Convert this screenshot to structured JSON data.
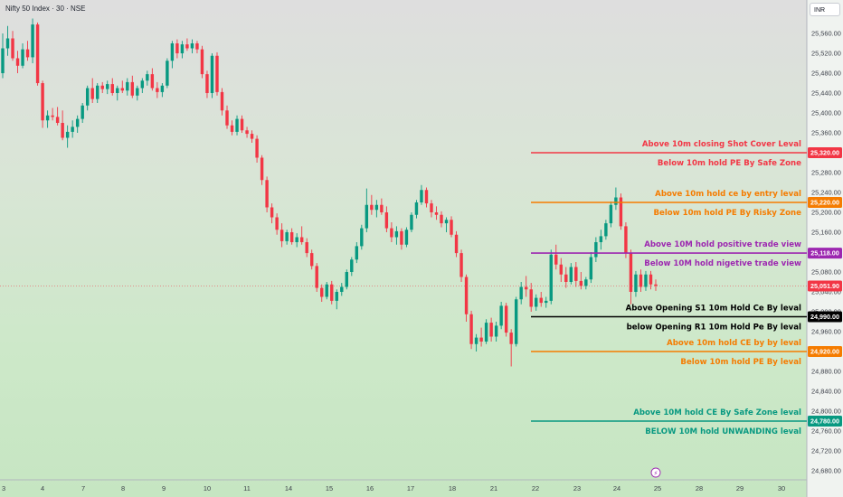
{
  "header": {
    "symbol_title": "Nifty 50 Index · 30 · NSE",
    "currency": "INR"
  },
  "chart_data": {
    "type": "candlestick",
    "y_axis": {
      "range": [
        24650,
        25600
      ],
      "ticks": [
        25560,
        25520,
        25480,
        25440,
        25400,
        25360,
        25320,
        25280,
        25240,
        25200,
        25160,
        25120,
        25080,
        25040,
        25000,
        24960,
        24920,
        24880,
        24840,
        24800,
        24760,
        24720,
        24680
      ],
      "tick_labels": [
        "25,560.00",
        "25,520.00",
        "25,480.00",
        "25,440.00",
        "25,400.00",
        "25,360.00",
        "25,320.00",
        "25,280.00",
        "25,240.00",
        "25,200.00",
        "25,160.00",
        "25,120.00",
        "25,080.00",
        "25,040.00",
        "25,000.00",
        "24,960.00",
        "24,920.00",
        "24,880.00",
        "24,840.00",
        "24,800.00",
        "24,760.00",
        "24,720.00",
        "24,680.00"
      ]
    },
    "x_axis": {
      "labels": [
        "3",
        "4",
        "7",
        "8",
        "9",
        "10",
        "11",
        "14",
        "15",
        "16",
        "17",
        "18",
        "21",
        "22",
        "23",
        "24",
        "25",
        "28",
        "29",
        "30"
      ],
      "event_marker": "⚡"
    },
    "current_price": {
      "value": 25051.9,
      "label": "25,051.90"
    },
    "colors": {
      "up": "#089981",
      "down": "#f23645",
      "current": "#f23645"
    },
    "levels": [
      {
        "value": 25320,
        "price_label": "25,320.00",
        "color": "#f23645",
        "texts": [
          "Above 10m closing Shot Cover Leval",
          "Below 10m hold PE By Safe Zone"
        ]
      },
      {
        "value": 25220,
        "price_label": "25,220.00",
        "color": "#f57c00",
        "texts": [
          "Above 10m hold ce by entry leval",
          "Below 10m hold PE By Risky Zone"
        ]
      },
      {
        "value": 25118,
        "price_label": "25,118.00",
        "color": "#9c27b0",
        "texts": [
          "Above 10M hold positive trade view",
          "Below 10M hold nigetive trade view"
        ]
      },
      {
        "value": 24990,
        "price_label": "24,990.00",
        "color": "#000000",
        "texts": [
          "Above Opening S1 10m Hold Ce By leval",
          "below Opening R1 10m Hold Pe By leval"
        ]
      },
      {
        "value": 24920,
        "price_label": "24,920.00",
        "color": "#f57c00",
        "texts": [
          "Above 10m hold CE by by leval",
          "Below 10m hold PE By leval"
        ]
      },
      {
        "value": 24780,
        "price_label": "24,780.00",
        "color": "#089981",
        "texts": [
          "Above 10M hold CE By Safe Zone leval",
          "BELOW 10M hold UNWANDING leval"
        ]
      }
    ],
    "candles": [
      [
        25480,
        25560,
        25470,
        25530
      ],
      [
        25530,
        25575,
        25515,
        25550
      ],
      [
        25550,
        25565,
        25505,
        25510
      ],
      [
        25510,
        25525,
        25480,
        25495
      ],
      [
        25495,
        25540,
        25490,
        25528
      ],
      [
        25528,
        25545,
        25505,
        25512
      ],
      [
        25512,
        25590,
        25500,
        25578
      ],
      [
        25578,
        25582,
        25455,
        25460
      ],
      [
        25460,
        25465,
        25370,
        25385
      ],
      [
        25385,
        25405,
        25370,
        25395
      ],
      [
        25395,
        25410,
        25385,
        25392
      ],
      [
        25392,
        25412,
        25375,
        25380
      ],
      [
        25380,
        25405,
        25345,
        25350
      ],
      [
        25350,
        25375,
        25330,
        25362
      ],
      [
        25362,
        25385,
        25350,
        25372
      ],
      [
        25372,
        25395,
        25360,
        25388
      ],
      [
        25388,
        25420,
        25380,
        25415
      ],
      [
        25415,
        25455,
        25405,
        25450
      ],
      [
        25450,
        25470,
        25420,
        25428
      ],
      [
        25428,
        25460,
        25420,
        25455
      ],
      [
        25455,
        25462,
        25440,
        25448
      ],
      [
        25448,
        25465,
        25438,
        25458
      ],
      [
        25458,
        25470,
        25435,
        25440
      ],
      [
        25440,
        25455,
        25425,
        25450
      ],
      [
        25450,
        25465,
        25440,
        25445
      ],
      [
        25445,
        25470,
        25435,
        25462
      ],
      [
        25462,
        25475,
        25430,
        25435
      ],
      [
        25435,
        25455,
        25425,
        25450
      ],
      [
        25450,
        25470,
        25440,
        25465
      ],
      [
        25465,
        25485,
        25455,
        25478
      ],
      [
        25478,
        25490,
        25445,
        25450
      ],
      [
        25450,
        25462,
        25430,
        25442
      ],
      [
        25442,
        25460,
        25432,
        25455
      ],
      [
        25455,
        25510,
        25450,
        25505
      ],
      [
        25505,
        25545,
        25490,
        25540
      ],
      [
        25540,
        25548,
        25510,
        25520
      ],
      [
        25520,
        25545,
        25510,
        25538
      ],
      [
        25538,
        25550,
        25525,
        25530
      ],
      [
        25530,
        25548,
        25520,
        25540
      ],
      [
        25540,
        25545,
        25520,
        25528
      ],
      [
        25528,
        25535,
        25470,
        25478
      ],
      [
        25478,
        25485,
        25430,
        25440
      ],
      [
        25440,
        25520,
        25430,
        25515
      ],
      [
        25515,
        25522,
        25435,
        25442
      ],
      [
        25442,
        25450,
        25395,
        25405
      ],
      [
        25405,
        25415,
        25368,
        25375
      ],
      [
        25375,
        25385,
        25355,
        25362
      ],
      [
        25362,
        25395,
        25355,
        25388
      ],
      [
        25388,
        25395,
        25360,
        25365
      ],
      [
        25365,
        25372,
        25350,
        25358
      ],
      [
        25358,
        25365,
        25340,
        25348
      ],
      [
        25348,
        25355,
        25300,
        25310
      ],
      [
        25310,
        25315,
        25255,
        25265
      ],
      [
        25265,
        25272,
        25200,
        25210
      ],
      [
        25210,
        25218,
        25178,
        25190
      ],
      [
        25190,
        25198,
        25155,
        25165
      ],
      [
        25165,
        25178,
        25130,
        25142
      ],
      [
        25142,
        25165,
        25135,
        25160
      ],
      [
        25160,
        25168,
        25135,
        25140
      ],
      [
        25140,
        25158,
        25130,
        25150
      ],
      [
        25150,
        25172,
        25135,
        25140
      ],
      [
        25140,
        25148,
        25110,
        25118
      ],
      [
        25118,
        25125,
        25085,
        25092
      ],
      [
        25092,
        25098,
        25040,
        25048
      ],
      [
        25048,
        25055,
        25020,
        25030
      ],
      [
        25030,
        25060,
        25025,
        25055
      ],
      [
        25055,
        25062,
        25015,
        25022
      ],
      [
        25022,
        25045,
        25005,
        25040
      ],
      [
        25040,
        25058,
        25032,
        25050
      ],
      [
        25050,
        25085,
        25045,
        25080
      ],
      [
        25080,
        25110,
        25072,
        25105
      ],
      [
        25105,
        25140,
        25098,
        25132
      ],
      [
        25132,
        25175,
        25125,
        25168
      ],
      [
        25168,
        25248,
        25160,
        25215
      ],
      [
        25215,
        25235,
        25195,
        25205
      ],
      [
        25205,
        25225,
        25190,
        25215
      ],
      [
        25215,
        25228,
        25195,
        25200
      ],
      [
        25200,
        25212,
        25160,
        25168
      ],
      [
        25168,
        25180,
        25140,
        25150
      ],
      [
        25150,
        25172,
        25135,
        25162
      ],
      [
        25162,
        25168,
        25125,
        25135
      ],
      [
        25135,
        25170,
        25130,
        25165
      ],
      [
        25165,
        25200,
        25160,
        25195
      ],
      [
        25195,
        25225,
        25188,
        25220
      ],
      [
        25220,
        25255,
        25215,
        25245
      ],
      [
        25245,
        25250,
        25210,
        25218
      ],
      [
        25218,
        25225,
        25190,
        25200
      ],
      [
        25200,
        25212,
        25185,
        25195
      ],
      [
        25195,
        25202,
        25170,
        25178
      ],
      [
        25178,
        25190,
        25160,
        25185
      ],
      [
        25185,
        25192,
        25150,
        25155
      ],
      [
        25155,
        25162,
        25110,
        25118
      ],
      [
        25118,
        25125,
        25060,
        25070
      ],
      [
        25070,
        25075,
        24980,
        24995
      ],
      [
        24995,
        25002,
        24925,
        24935
      ],
      [
        24935,
        24955,
        24920,
        24948
      ],
      [
        24948,
        24968,
        24930,
        24940
      ],
      [
        24940,
        24985,
        24935,
        24978
      ],
      [
        24978,
        24988,
        24940,
        24950
      ],
      [
        24950,
        24980,
        24940,
        24972
      ],
      [
        24972,
        25020,
        24965,
        25012
      ],
      [
        25012,
        25018,
        24950,
        24958
      ],
      [
        24958,
        24965,
        24890,
        24935
      ],
      [
        24935,
        25030,
        24930,
        25025
      ],
      [
        25025,
        25060,
        25015,
        25050
      ],
      [
        25050,
        25072,
        25030,
        25045
      ],
      [
        25045,
        25058,
        25000,
        25010
      ],
      [
        25010,
        25035,
        25002,
        25028
      ],
      [
        25028,
        25040,
        25010,
        25018
      ],
      [
        25018,
        25030,
        25008,
        25022
      ],
      [
        25022,
        25125,
        25015,
        25115
      ],
      [
        25115,
        25135,
        25085,
        25095
      ],
      [
        25095,
        25108,
        25060,
        25075
      ],
      [
        25075,
        25090,
        25048,
        25060
      ],
      [
        25060,
        25098,
        25055,
        25090
      ],
      [
        25090,
        25100,
        25050,
        25062
      ],
      [
        25062,
        25080,
        25045,
        25052
      ],
      [
        25052,
        25070,
        25045,
        25065
      ],
      [
        25065,
        25120,
        25058,
        25110
      ],
      [
        25110,
        25150,
        25100,
        25140
      ],
      [
        25140,
        25165,
        25125,
        25152
      ],
      [
        25152,
        25185,
        25145,
        25178
      ],
      [
        25178,
        25222,
        25170,
        25215
      ],
      [
        25215,
        25250,
        25205,
        25230
      ],
      [
        25230,
        25238,
        25165,
        25172
      ],
      [
        25172,
        25180,
        25108,
        25118
      ],
      [
        25118,
        25125,
        25015,
        25040
      ],
      [
        25040,
        25082,
        25030,
        25075
      ],
      [
        25075,
        25085,
        25040,
        25050
      ],
      [
        25050,
        25082,
        25042,
        25075
      ],
      [
        25075,
        25082,
        25045,
        25055
      ],
      [
        25055,
        25065,
        25042,
        25052
      ]
    ]
  }
}
